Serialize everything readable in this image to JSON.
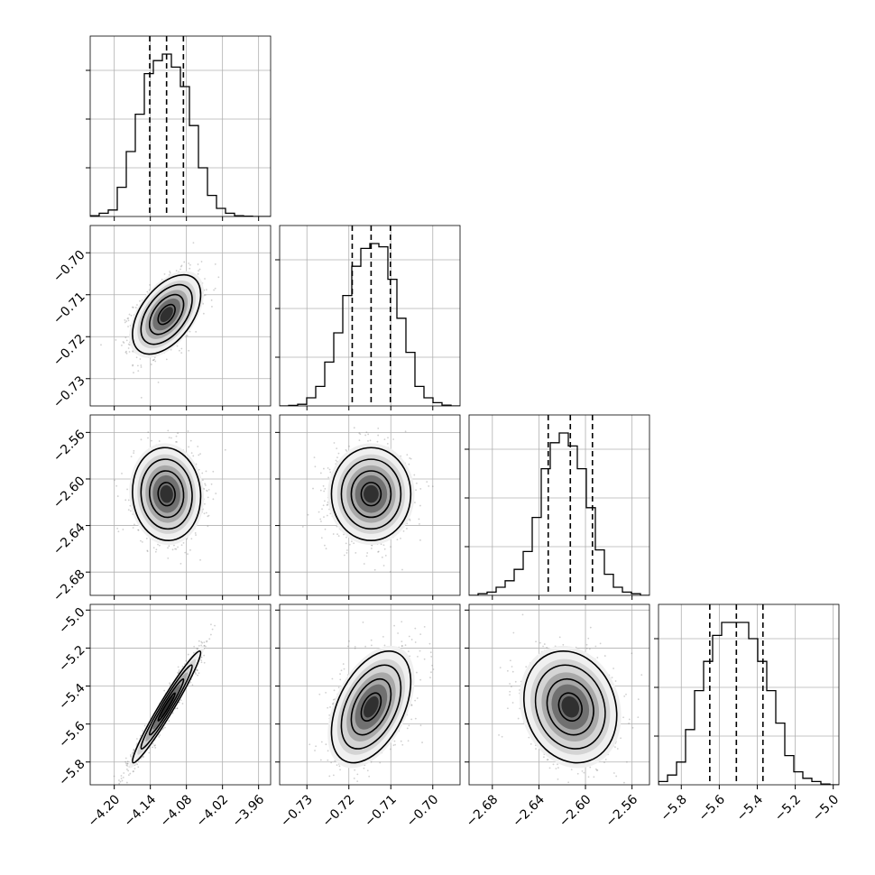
{
  "chart_data": {
    "type": "corner",
    "grid": true,
    "parameters": [
      {
        "range": [
          -4.24,
          -3.94
        ],
        "ticks": [
          "−4.20",
          "−4.14",
          "−4.08",
          "−4.02",
          "−3.96"
        ],
        "tick_values": [
          -4.2,
          -4.14,
          -4.08,
          -4.02,
          -3.96
        ],
        "quantiles": [
          -4.141,
          -4.113,
          -4.085
        ],
        "mean": -4.113,
        "sd": 0.027
      },
      {
        "range": [
          -0.7365,
          -0.6935
        ],
        "ticks": [
          "−0.73",
          "−0.72",
          "−0.71",
          "−0.70"
        ],
        "tick_values": [
          -0.73,
          -0.72,
          -0.71,
          -0.7
        ],
        "quantiles": [
          -0.7192,
          -0.7147,
          -0.7101
        ],
        "mean": -0.7147,
        "sd": 0.0045
      },
      {
        "range": [
          -2.7,
          -2.545
        ],
        "ticks": [
          "−2.68",
          "−2.64",
          "−2.60",
          "−2.56"
        ],
        "tick_values": [
          -2.68,
          -2.64,
          -2.6,
          -2.56
        ],
        "quantiles": [
          -2.632,
          -2.613,
          -2.594
        ],
        "mean": -2.613,
        "sd": 0.019
      },
      {
        "range": [
          -5.92,
          -4.97
        ],
        "ticks": [
          "−5.8",
          "−5.6",
          "−5.4",
          "−5.2",
          "−5.0"
        ],
        "tick_values": [
          -5.8,
          -5.6,
          -5.4,
          -5.2,
          -5.0
        ],
        "quantiles": [
          -5.65,
          -5.51,
          -5.37
        ],
        "mean": -5.51,
        "sd": 0.14
      }
    ],
    "histograms": [
      {
        "bins": 20,
        "counts": [
          0.005,
          0.02,
          0.04,
          0.18,
          0.4,
          0.63,
          0.88,
          0.96,
          1.0,
          0.92,
          0.8,
          0.56,
          0.3,
          0.13,
          0.05,
          0.02,
          0.005,
          0.002,
          0.0,
          0.0
        ]
      },
      {
        "bins": 20,
        "counts": [
          0.0,
          0.003,
          0.01,
          0.05,
          0.12,
          0.27,
          0.45,
          0.68,
          0.86,
          0.97,
          1.0,
          0.98,
          0.78,
          0.54,
          0.33,
          0.12,
          0.05,
          0.02,
          0.005,
          0.0
        ]
      },
      {
        "bins": 20,
        "counts": [
          0.0,
          0.01,
          0.02,
          0.05,
          0.09,
          0.16,
          0.27,
          0.48,
          0.78,
          0.94,
          1.0,
          0.92,
          0.78,
          0.54,
          0.28,
          0.13,
          0.05,
          0.02,
          0.01,
          0.0
        ]
      },
      {
        "bins": 20,
        "counts": [
          0.02,
          0.06,
          0.14,
          0.34,
          0.58,
          0.76,
          0.92,
          1.0,
          1.0,
          1.0,
          0.9,
          0.76,
          0.58,
          0.38,
          0.18,
          0.08,
          0.04,
          0.02,
          0.005,
          0.0
        ]
      }
    ],
    "correlations": [
      {
        "pair": [
          1,
          0
        ],
        "rho": 0.5
      },
      {
        "pair": [
          2,
          0
        ],
        "rho": -0.05
      },
      {
        "pair": [
          2,
          1
        ],
        "rho": 0.0
      },
      {
        "pair": [
          3,
          0
        ],
        "rho": 0.97
      },
      {
        "pair": [
          3,
          1
        ],
        "rho": 0.45
      },
      {
        "pair": [
          3,
          2
        ],
        "rho": -0.15
      }
    ],
    "contour_levels_sigma": [
      0.5,
      1.0,
      1.5,
      2.0
    ]
  }
}
